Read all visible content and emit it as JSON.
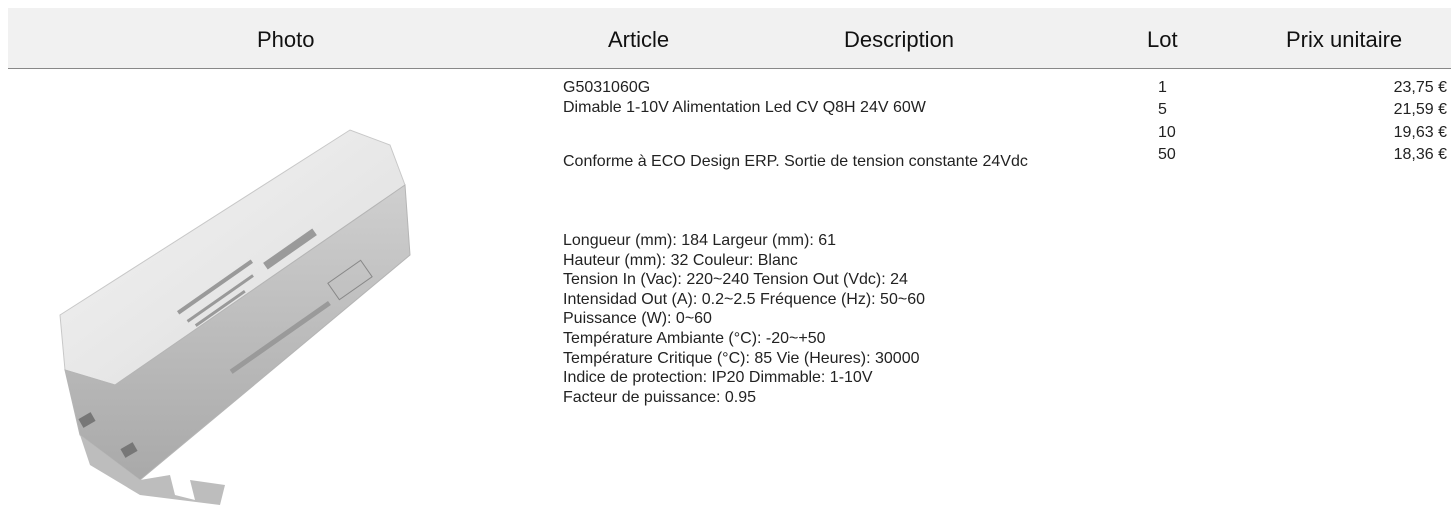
{
  "header": {
    "photo": "Photo",
    "article": "Article",
    "description": "Description",
    "lot": "Lot",
    "price": "Prix unitaire"
  },
  "product": {
    "code": "G5031060G",
    "name": "Dimable 1-10V Alimentation Led CV Q8H 24V 60W",
    "summary": "Conforme à ECO Design ERP. Sortie de tension constante 24Vdc",
    "specs": [
      "Longueur (mm): 184 Largeur (mm): 61",
      "Hauteur (mm): 32 Couleur: Blanc",
      "Tension In (Vac): 220~240 Tension Out (Vdc): 24",
      "Intensidad Out (A): 0.2~2.5 Fréquence (Hz): 50~60",
      "Puissance (W): 0~60",
      "Température Ambiante (°C): -20~+50",
      "Température Critique (°C): 85 Vie (Heures): 30000",
      "Indice de protection: IP20 Dimmable: 1-10V",
      "Facteur de puissance: 0.95"
    ]
  },
  "prices": [
    {
      "lot": "1",
      "price": "23,75 €"
    },
    {
      "lot": "5",
      "price": "21,59 €"
    },
    {
      "lot": "10",
      "price": "19,63 €"
    },
    {
      "lot": "50",
      "price": "18,36 €"
    }
  ]
}
